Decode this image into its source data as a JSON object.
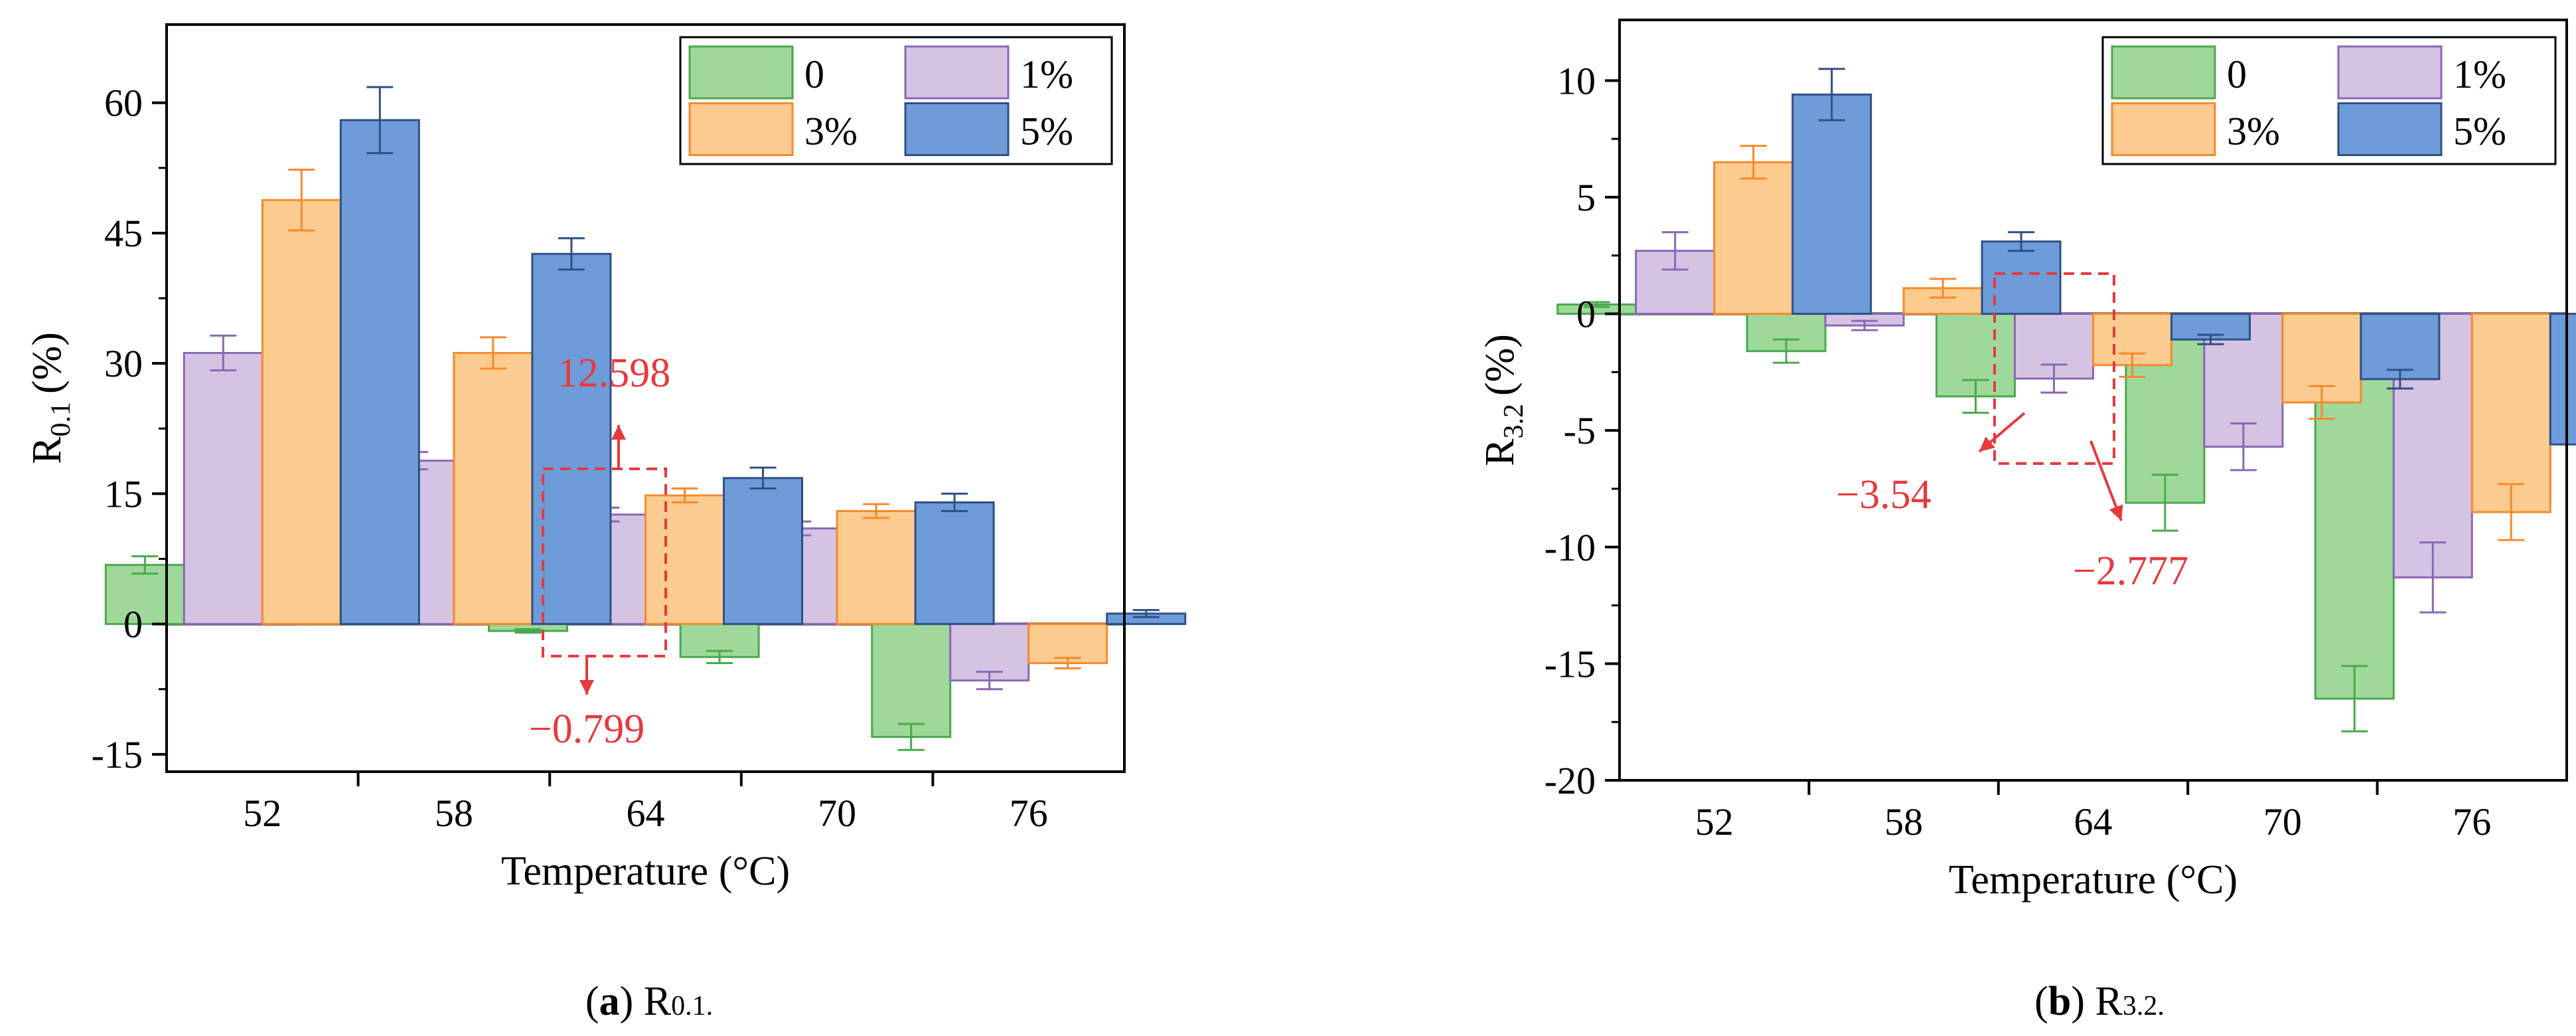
{
  "chart_data": [
    {
      "type": "bar",
      "panel": "a",
      "ylabel_main": "R",
      "ylabel_sub": "0.1",
      "ylabel_unit": "(%)",
      "xlabel": "Temperature (°C)",
      "categories": [
        "52",
        "58",
        "64",
        "70",
        "76"
      ],
      "ylim": [
        -17,
        69
      ],
      "yticks": [
        -15,
        0,
        15,
        30,
        45,
        60
      ],
      "series": [
        {
          "name": "0",
          "values": [
            6.8,
            3.4,
            -0.799,
            -3.8,
            -13.0
          ],
          "errors": [
            1.0,
            0.6,
            0.2,
            0.7,
            1.5
          ]
        },
        {
          "name": "1%",
          "values": [
            31.2,
            18.8,
            12.598,
            11.0,
            -6.5
          ],
          "errors": [
            2.0,
            1.0,
            0.8,
            0.8,
            1.0
          ]
        },
        {
          "name": "3%",
          "values": [
            48.8,
            31.2,
            14.8,
            13.0,
            -4.5
          ],
          "errors": [
            3.5,
            1.8,
            0.8,
            0.8,
            0.6
          ]
        },
        {
          "name": "5%",
          "values": [
            58.0,
            42.6,
            16.8,
            14.0,
            1.2
          ],
          "errors": [
            3.8,
            1.8,
            1.2,
            1.0,
            0.4
          ]
        }
      ],
      "annotations": {
        "up_label": "12.598",
        "down_label": "−0.799"
      },
      "caption_letter": "a",
      "caption_main": "R",
      "caption_sub": "0.1.",
      "legend_placement": "top-right"
    },
    {
      "type": "bar",
      "panel": "b",
      "ylabel_main": "R",
      "ylabel_sub": "3.2",
      "ylabel_unit": "(%)",
      "xlabel": "Temperature (°C)",
      "categories": [
        "52",
        "58",
        "64",
        "70",
        "76"
      ],
      "ylim": [
        -20,
        12.6
      ],
      "yticks": [
        -20,
        -15,
        -10,
        -5,
        0,
        5,
        10
      ],
      "series": [
        {
          "name": "0",
          "values": [
            0.4,
            -1.6,
            -3.54,
            -8.1,
            -16.5
          ],
          "errors": [
            0.1,
            0.5,
            0.7,
            1.2,
            1.4
          ]
        },
        {
          "name": "1%",
          "values": [
            2.7,
            -0.5,
            -2.777,
            -5.7,
            -11.3
          ],
          "errors": [
            0.8,
            0.2,
            0.6,
            1.0,
            1.5
          ]
        },
        {
          "name": "3%",
          "values": [
            6.5,
            1.1,
            -2.2,
            -3.8,
            -8.5
          ],
          "errors": [
            0.7,
            0.4,
            0.5,
            0.7,
            1.2
          ]
        },
        {
          "name": "5%",
          "values": [
            9.4,
            3.1,
            -1.1,
            -2.8,
            -5.6
          ],
          "errors": [
            1.1,
            0.4,
            0.2,
            0.4,
            0.7
          ]
        }
      ],
      "annotations": {
        "up_label": "−3.54",
        "down_label": "−2.777"
      },
      "caption_letter": "b",
      "caption_main": "R",
      "caption_sub": "3.2.",
      "legend_placement": "top-right"
    }
  ],
  "colors": {
    "fills": [
      "#9ed89a",
      "#d5c3e3",
      "#fccb8f",
      "#6e9cd8"
    ],
    "edges": [
      "#49a94c",
      "#8a67b5",
      "#f7892b",
      "#2f4f86"
    ],
    "annotation": "#e8383d",
    "axis": "#000000"
  }
}
